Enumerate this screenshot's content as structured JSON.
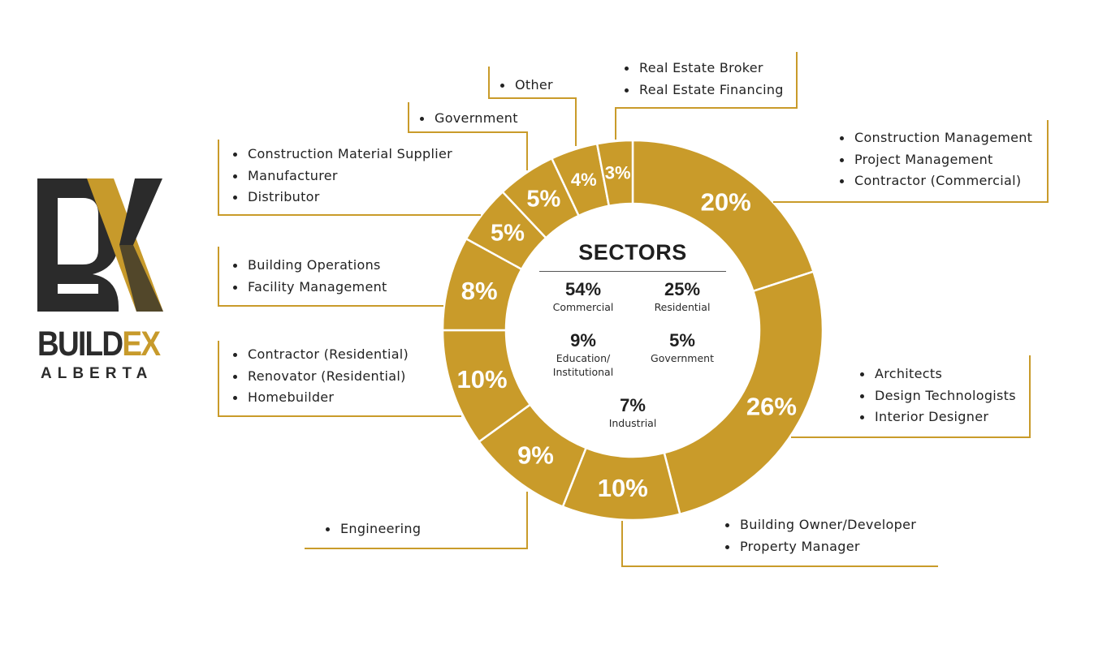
{
  "brand": {
    "logo_mark": "BX",
    "word_main": "BUILD",
    "word_accent": "EX",
    "word_sub": "ALBERTA",
    "colors": {
      "dark": "#2b2b2b",
      "gold": "#c79a2b"
    }
  },
  "colors": {
    "slice": "#c99b2a",
    "leader": "#c99b2a",
    "separator": "#ffffff"
  },
  "center": {
    "title": "SECTORS",
    "stats": [
      {
        "value": "54%",
        "label": "Commercial"
      },
      {
        "value": "25%",
        "label": "Residential"
      },
      {
        "value": "9%",
        "label": "Education/\nInstitutional"
      },
      {
        "value": "5%",
        "label": "Government"
      },
      {
        "value": "7%",
        "label": "Industrial"
      }
    ]
  },
  "callouts": {
    "c0": [
      "Construction Management",
      "Project Management",
      "Contractor (Commercial)"
    ],
    "c1": [
      "Architects",
      "Design Technologists",
      "Interior Designer"
    ],
    "c2": [
      "Building Owner/Developer",
      "Property Manager"
    ],
    "c3": [
      "Engineering"
    ],
    "c4": [
      "Contractor (Residential)",
      "Renovator (Residential)",
      "Homebuilder"
    ],
    "c5": [
      "Building Operations",
      "Facility Management"
    ],
    "c6": [
      "Construction Material Supplier",
      "Manufacturer",
      "Distributor"
    ],
    "c7": [
      "Government"
    ],
    "c8": [
      "Other"
    ],
    "c9": [
      "Real Estate Broker",
      "Real Estate Financing"
    ]
  },
  "chart_data": {
    "type": "pie",
    "title": "SECTORS",
    "donut": true,
    "labels": [
      "Construction Management / Project Management / Contractor (Commercial)",
      "Architects / Design Technologists / Interior Designer",
      "Building Owner/Developer / Property Manager",
      "Engineering",
      "Contractor (Residential) / Renovator (Residential) / Homebuilder",
      "Building Operations / Facility Management",
      "Construction Material Supplier / Manufacturer / Distributor",
      "Government",
      "Other",
      "Real Estate Broker / Real Estate Financing"
    ],
    "values": [
      20,
      26,
      10,
      9,
      10,
      8,
      5,
      5,
      4,
      3
    ],
    "value_labels": [
      "20%",
      "26%",
      "10%",
      "9%",
      "10%",
      "8%",
      "5%",
      "5%",
      "4%",
      "3%"
    ]
  }
}
